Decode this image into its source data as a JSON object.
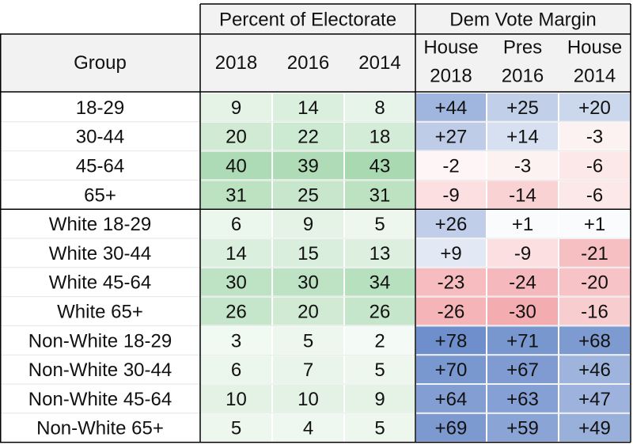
{
  "chart_data": {
    "type": "table",
    "header": {
      "group_label": "Group",
      "section_electorate": "Percent of Electorate",
      "section_margin": "Dem Vote Margin",
      "electorate_years": [
        "2018",
        "2016",
        "2014"
      ],
      "margin_columns": [
        {
          "office": "House",
          "year": "2018"
        },
        {
          "office": "Pres",
          "year": "2016"
        },
        {
          "office": "House",
          "year": "2014"
        }
      ]
    },
    "rows": [
      {
        "group": "18-29",
        "electorate": [
          9,
          14,
          8
        ],
        "margin": [
          "+44",
          "+25",
          "+20"
        ]
      },
      {
        "group": "30-44",
        "electorate": [
          20,
          22,
          18
        ],
        "margin": [
          "+27",
          "+14",
          "-3"
        ]
      },
      {
        "group": "45-64",
        "electorate": [
          40,
          39,
          43
        ],
        "margin": [
          "-2",
          "-3",
          "-6"
        ]
      },
      {
        "group": "65+",
        "electorate": [
          31,
          25,
          31
        ],
        "margin": [
          "-9",
          "-14",
          "-6"
        ]
      },
      {
        "group": "White 18-29",
        "electorate": [
          6,
          9,
          5
        ],
        "margin": [
          "+26",
          "+1",
          "+1"
        ]
      },
      {
        "group": "White 30-44",
        "electorate": [
          14,
          15,
          13
        ],
        "margin": [
          "+9",
          "-9",
          "-21"
        ]
      },
      {
        "group": "White 45-64",
        "electorate": [
          30,
          30,
          34
        ],
        "margin": [
          "-23",
          "-24",
          "-20"
        ]
      },
      {
        "group": "White 65+",
        "electorate": [
          26,
          20,
          26
        ],
        "margin": [
          "-26",
          "-30",
          "-16"
        ]
      },
      {
        "group": "Non-White 18-29",
        "electorate": [
          3,
          5,
          2
        ],
        "margin": [
          "+78",
          "+71",
          "+68"
        ]
      },
      {
        "group": "Non-White 30-44",
        "electorate": [
          6,
          7,
          5
        ],
        "margin": [
          "+70",
          "+67",
          "+46"
        ]
      },
      {
        "group": "Non-White 45-64",
        "electorate": [
          10,
          10,
          9
        ],
        "margin": [
          "+64",
          "+63",
          "+47"
        ]
      },
      {
        "group": "Non-White 65+",
        "electorate": [
          5,
          4,
          5
        ],
        "margin": [
          "+69",
          "+59",
          "+49"
        ]
      }
    ],
    "colors": {
      "header_background": "#f2f2f2",
      "electorate_scale_low": "#f4faf5",
      "electorate_scale_high": "#a8d9b0",
      "margin_positive": "#6f8fcc",
      "margin_negative": "#f3a9ad",
      "margin_neutral": "#ffffff"
    }
  }
}
